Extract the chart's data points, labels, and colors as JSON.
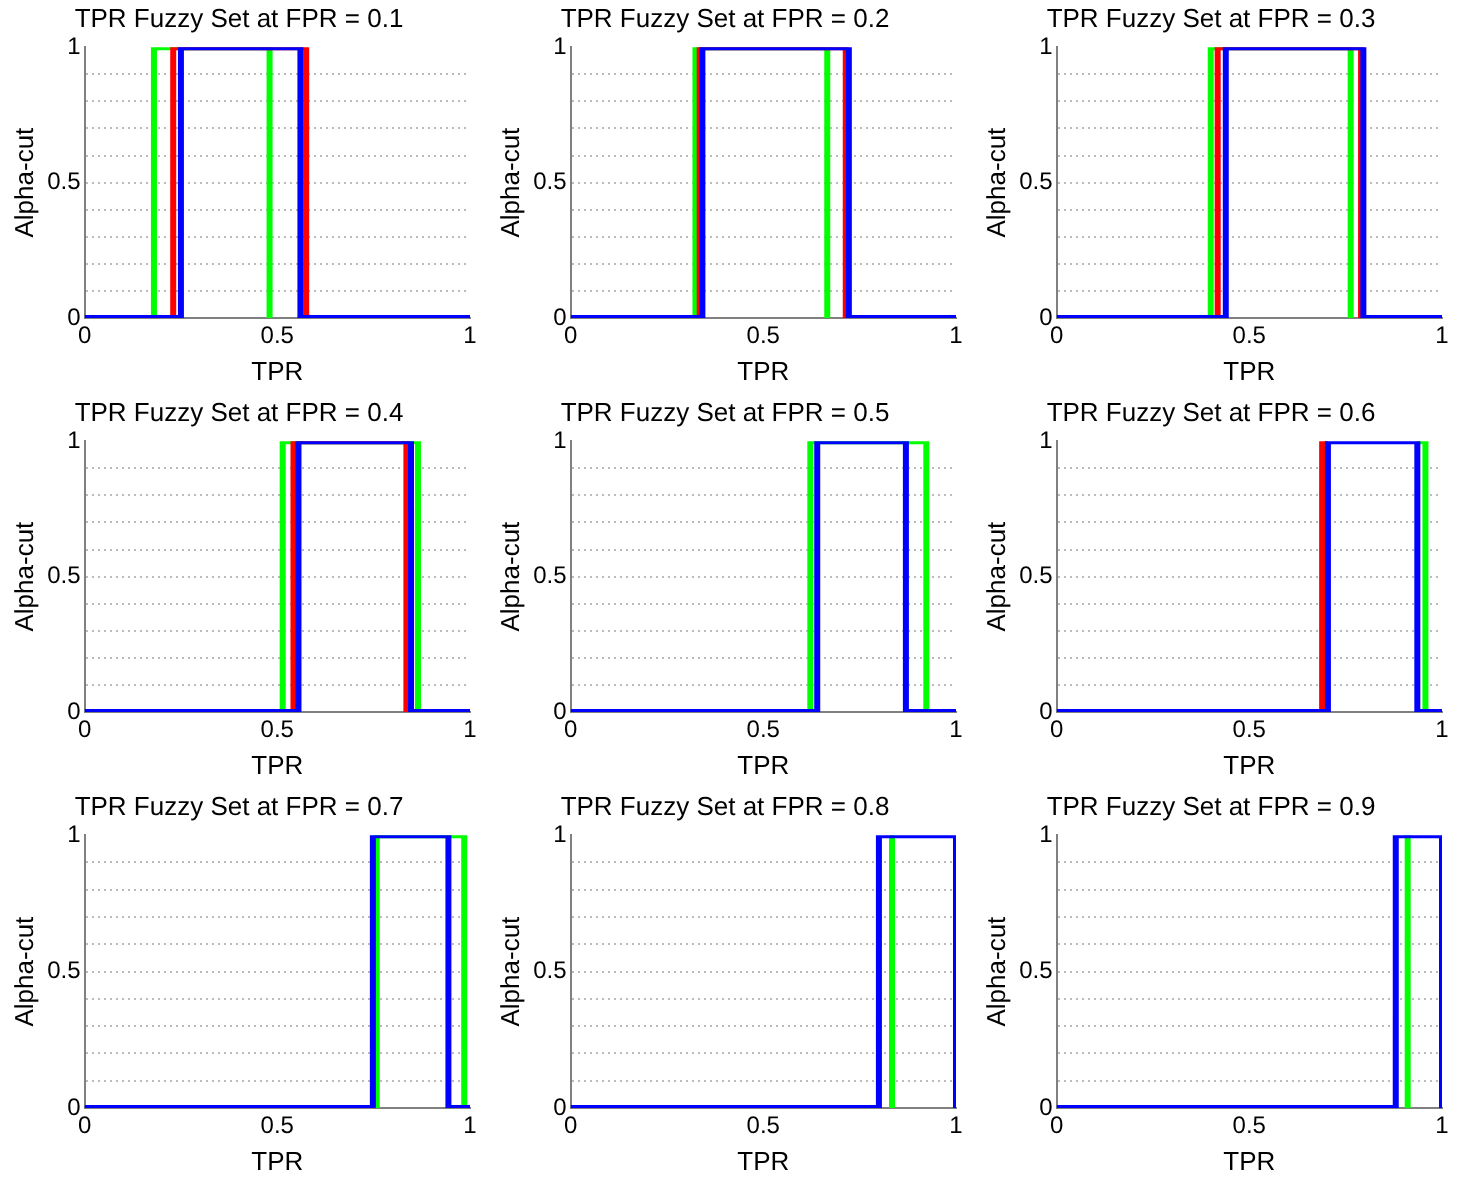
{
  "chart_data": [
    {
      "type": "line",
      "title": "TPR Fuzzy Set at FPR = 0.1",
      "xlabel": "TPR",
      "ylabel": "Alpha-cut",
      "marker": "none",
      "grid": "y",
      "legend": false,
      "xlim": [
        0,
        1
      ],
      "ylim": [
        0,
        1
      ],
      "xticks": [
        0,
        0.5,
        1
      ],
      "yticks": [
        0,
        {
          "value": 0.1,
          "label": null
        },
        {
          "value": 0.2,
          "label": null
        },
        {
          "value": 0.3,
          "label": null
        },
        {
          "value": 0.4,
          "label": null
        },
        0.5,
        {
          "value": 0.6,
          "label": null
        },
        {
          "value": 0.7,
          "label": null
        },
        {
          "value": 0.8,
          "label": null
        },
        {
          "value": 0.9,
          "label": null
        },
        1
      ],
      "series": [
        {
          "color": "#0000ff",
          "x": [
            0,
            0.25,
            0.25,
            0.56,
            0.56,
            1
          ],
          "values": [
            0,
            0,
            1,
            1,
            0,
            0
          ]
        },
        {
          "color": "#ff0000",
          "x": [
            0.23,
            0.23,
            0.575,
            0.575
          ],
          "values": [
            0,
            1,
            1,
            0
          ]
        },
        {
          "color": "#00ff00",
          "x": [
            0.18,
            0.18,
            0.48,
            0.48
          ],
          "values": [
            0,
            1,
            1,
            0
          ]
        }
      ]
    },
    {
      "type": "line",
      "title": "TPR Fuzzy Set at FPR = 0.2",
      "xlabel": "TPR",
      "ylabel": "Alpha-cut",
      "marker": "none",
      "grid": "y",
      "legend": false,
      "xlim": [
        0,
        1
      ],
      "ylim": [
        0,
        1
      ],
      "xticks": [
        0,
        0.5,
        1
      ],
      "yticks": [
        0,
        {
          "value": 0.1,
          "label": null
        },
        {
          "value": 0.2,
          "label": null
        },
        {
          "value": 0.3,
          "label": null
        },
        {
          "value": 0.4,
          "label": null
        },
        0.5,
        {
          "value": 0.6,
          "label": null
        },
        {
          "value": 0.7,
          "label": null
        },
        {
          "value": 0.8,
          "label": null
        },
        {
          "value": 0.9,
          "label": null
        },
        1
      ],
      "series": [
        {
          "color": "#0000ff",
          "x": [
            0,
            0.342,
            0.342,
            0.722,
            0.722,
            1
          ],
          "values": [
            0,
            0,
            1,
            1,
            0,
            0
          ]
        },
        {
          "color": "#ff0000",
          "x": [
            0.335,
            0.335,
            0.714,
            0.714
          ],
          "values": [
            0,
            1,
            1,
            0
          ]
        },
        {
          "color": "#00ff00",
          "x": [
            0.324,
            0.324,
            0.666,
            0.666
          ],
          "values": [
            0,
            1,
            1,
            0
          ]
        }
      ]
    },
    {
      "type": "line",
      "title": "TPR Fuzzy Set at FPR = 0.3",
      "xlabel": "TPR",
      "ylabel": "Alpha-cut",
      "marker": "none",
      "grid": "y",
      "legend": false,
      "xlim": [
        0,
        1
      ],
      "ylim": [
        0,
        1
      ],
      "xticks": [
        0,
        0.5,
        1
      ],
      "yticks": [
        0,
        {
          "value": 0.1,
          "label": null
        },
        {
          "value": 0.2,
          "label": null
        },
        {
          "value": 0.3,
          "label": null
        },
        {
          "value": 0.4,
          "label": null
        },
        0.5,
        {
          "value": 0.6,
          "label": null
        },
        {
          "value": 0.7,
          "label": null
        },
        {
          "value": 0.8,
          "label": null
        },
        {
          "value": 0.9,
          "label": null
        },
        1
      ],
      "series": [
        {
          "color": "#0000ff",
          "x": [
            0,
            0.439,
            0.439,
            0.796,
            0.796,
            1
          ],
          "values": [
            0,
            0,
            1,
            1,
            0,
            0
          ]
        },
        {
          "color": "#ff0000",
          "x": [
            0.418,
            0.418,
            0.79,
            0.79
          ],
          "values": [
            0,
            1,
            1,
            0
          ]
        },
        {
          "color": "#00ff00",
          "x": [
            0.4,
            0.4,
            0.763,
            0.763
          ],
          "values": [
            0,
            1,
            1,
            0
          ]
        }
      ]
    },
    {
      "type": "line",
      "title": "TPR Fuzzy Set at FPR = 0.4",
      "xlabel": "TPR",
      "ylabel": "Alpha-cut",
      "marker": "none",
      "grid": "y",
      "legend": false,
      "xlim": [
        0,
        1
      ],
      "ylim": [
        0,
        1
      ],
      "xticks": [
        0,
        0.5,
        1
      ],
      "yticks": [
        0,
        {
          "value": 0.1,
          "label": null
        },
        {
          "value": 0.2,
          "label": null
        },
        {
          "value": 0.3,
          "label": null
        },
        {
          "value": 0.4,
          "label": null
        },
        0.5,
        {
          "value": 0.6,
          "label": null
        },
        {
          "value": 0.7,
          "label": null
        },
        {
          "value": 0.8,
          "label": null
        },
        {
          "value": 0.9,
          "label": null
        },
        1
      ],
      "series": [
        {
          "color": "#0000ff",
          "x": [
            0,
            0.555,
            0.555,
            0.847,
            0.847,
            1
          ],
          "values": [
            0,
            0,
            1,
            1,
            0,
            0
          ]
        },
        {
          "color": "#ff0000",
          "x": [
            0.542,
            0.542,
            0.835,
            0.835
          ],
          "values": [
            0,
            1,
            1,
            0
          ]
        },
        {
          "color": "#00ff00",
          "x": [
            0.514,
            0.514,
            0.865,
            0.865
          ],
          "values": [
            0,
            1,
            1,
            0
          ]
        }
      ]
    },
    {
      "type": "line",
      "title": "TPR Fuzzy Set at FPR = 0.5",
      "xlabel": "TPR",
      "ylabel": "Alpha-cut",
      "marker": "none",
      "grid": "y",
      "legend": false,
      "xlim": [
        0,
        1
      ],
      "ylim": [
        0,
        1
      ],
      "xticks": [
        0,
        0.5,
        1
      ],
      "yticks": [
        0,
        {
          "value": 0.1,
          "label": null
        },
        {
          "value": 0.2,
          "label": null
        },
        {
          "value": 0.3,
          "label": null
        },
        {
          "value": 0.4,
          "label": null
        },
        0.5,
        {
          "value": 0.6,
          "label": null
        },
        {
          "value": 0.7,
          "label": null
        },
        {
          "value": 0.8,
          "label": null
        },
        {
          "value": 0.9,
          "label": null
        },
        1
      ],
      "series": [
        {
          "color": "#0000ff",
          "x": [
            0,
            0.64,
            0.64,
            0.87,
            0.87,
            1
          ],
          "values": [
            0,
            0,
            1,
            1,
            0,
            0
          ]
        },
        {
          "color": "#00ff00",
          "x": [
            0.622,
            0.622,
            0.87,
            0.923,
            0.923
          ],
          "values": [
            0,
            1,
            1,
            1,
            0
          ]
        }
      ]
    },
    {
      "type": "line",
      "title": "TPR Fuzzy Set at FPR = 0.6",
      "xlabel": "TPR",
      "ylabel": "Alpha-cut",
      "marker": "none",
      "grid": "y",
      "legend": false,
      "xlim": [
        0,
        1
      ],
      "ylim": [
        0,
        1
      ],
      "xticks": [
        0,
        0.5,
        1
      ],
      "yticks": [
        0,
        {
          "value": 0.1,
          "label": null
        },
        {
          "value": 0.2,
          "label": null
        },
        {
          "value": 0.3,
          "label": null
        },
        {
          "value": 0.4,
          "label": null
        },
        0.5,
        {
          "value": 0.6,
          "label": null
        },
        {
          "value": 0.7,
          "label": null
        },
        {
          "value": 0.8,
          "label": null
        },
        {
          "value": 0.9,
          "label": null
        },
        1
      ],
      "series": [
        {
          "color": "#0000ff",
          "x": [
            0,
            0.704,
            0.704,
            0.936,
            0.936,
            1
          ],
          "values": [
            0,
            0,
            1,
            1,
            0,
            0
          ]
        },
        {
          "color": "#ff0000",
          "x": [
            0.689,
            0.689,
            0.704
          ],
          "values": [
            0,
            1,
            1
          ]
        },
        {
          "color": "#00ff00",
          "x": [
            0.936,
            0.957,
            0.957
          ],
          "values": [
            1,
            1,
            0
          ]
        }
      ]
    },
    {
      "type": "line",
      "title": "TPR Fuzzy Set at FPR = 0.7",
      "xlabel": "TPR",
      "ylabel": "Alpha-cut",
      "marker": "none",
      "grid": "y",
      "legend": false,
      "xlim": [
        0,
        1
      ],
      "ylim": [
        0,
        1
      ],
      "xticks": [
        0,
        0.5,
        1
      ],
      "yticks": [
        0,
        {
          "value": 0.1,
          "label": null
        },
        {
          "value": 0.2,
          "label": null
        },
        {
          "value": 0.3,
          "label": null
        },
        {
          "value": 0.4,
          "label": null
        },
        0.5,
        {
          "value": 0.6,
          "label": null
        },
        {
          "value": 0.7,
          "label": null
        },
        {
          "value": 0.8,
          "label": null
        },
        {
          "value": 0.9,
          "label": null
        },
        1
      ],
      "series": [
        {
          "color": "#0000ff",
          "x": [
            0,
            0.748,
            0.748,
            0.944,
            0.944,
            1
          ],
          "values": [
            0,
            0,
            1,
            1,
            0,
            0
          ]
        },
        {
          "color": "#00ff00",
          "x": [
            0.758,
            0.758,
            0.985,
            0.985
          ],
          "values": [
            0,
            1,
            1,
            0
          ]
        }
      ]
    },
    {
      "type": "line",
      "title": "TPR Fuzzy Set at FPR = 0.8",
      "xlabel": "TPR",
      "ylabel": "Alpha-cut",
      "marker": "none",
      "grid": "y",
      "legend": false,
      "xlim": [
        0,
        1
      ],
      "ylim": [
        0,
        1
      ],
      "xticks": [
        0,
        0.5,
        1
      ],
      "yticks": [
        0,
        {
          "value": 0.1,
          "label": null
        },
        {
          "value": 0.2,
          "label": null
        },
        {
          "value": 0.3,
          "label": null
        },
        {
          "value": 0.4,
          "label": null
        },
        0.5,
        {
          "value": 0.6,
          "label": null
        },
        {
          "value": 0.7,
          "label": null
        },
        {
          "value": 0.8,
          "label": null
        },
        {
          "value": 0.9,
          "label": null
        },
        1
      ],
      "series": [
        {
          "color": "#0000ff",
          "x": [
            0,
            0.8,
            0.8,
            1,
            1
          ],
          "values": [
            0,
            0,
            1,
            1,
            0
          ]
        },
        {
          "color": "#00ff00",
          "x": [
            0.834,
            0.834
          ],
          "values": [
            0,
            1
          ]
        }
      ]
    },
    {
      "type": "line",
      "title": "TPR Fuzzy Set at FPR = 0.9",
      "xlabel": "TPR",
      "ylabel": "Alpha-cut",
      "marker": "none",
      "grid": "y",
      "legend": false,
      "xlim": [
        0,
        1
      ],
      "ylim": [
        0,
        1
      ],
      "xticks": [
        0,
        0.5,
        1
      ],
      "yticks": [
        0,
        {
          "value": 0.1,
          "label": null
        },
        {
          "value": 0.2,
          "label": null
        },
        {
          "value": 0.3,
          "label": null
        },
        {
          "value": 0.4,
          "label": null
        },
        0.5,
        {
          "value": 0.6,
          "label": null
        },
        {
          "value": 0.7,
          "label": null
        },
        {
          "value": 0.8,
          "label": null
        },
        {
          "value": 0.9,
          "label": null
        },
        1
      ],
      "series": [
        {
          "color": "#0000ff",
          "x": [
            0,
            0.88,
            0.88,
            1,
            1
          ],
          "values": [
            0,
            0,
            1,
            1,
            0
          ]
        },
        {
          "color": "#00ff00",
          "x": [
            0.911,
            0.911
          ],
          "values": [
            0,
            1
          ]
        }
      ]
    }
  ]
}
